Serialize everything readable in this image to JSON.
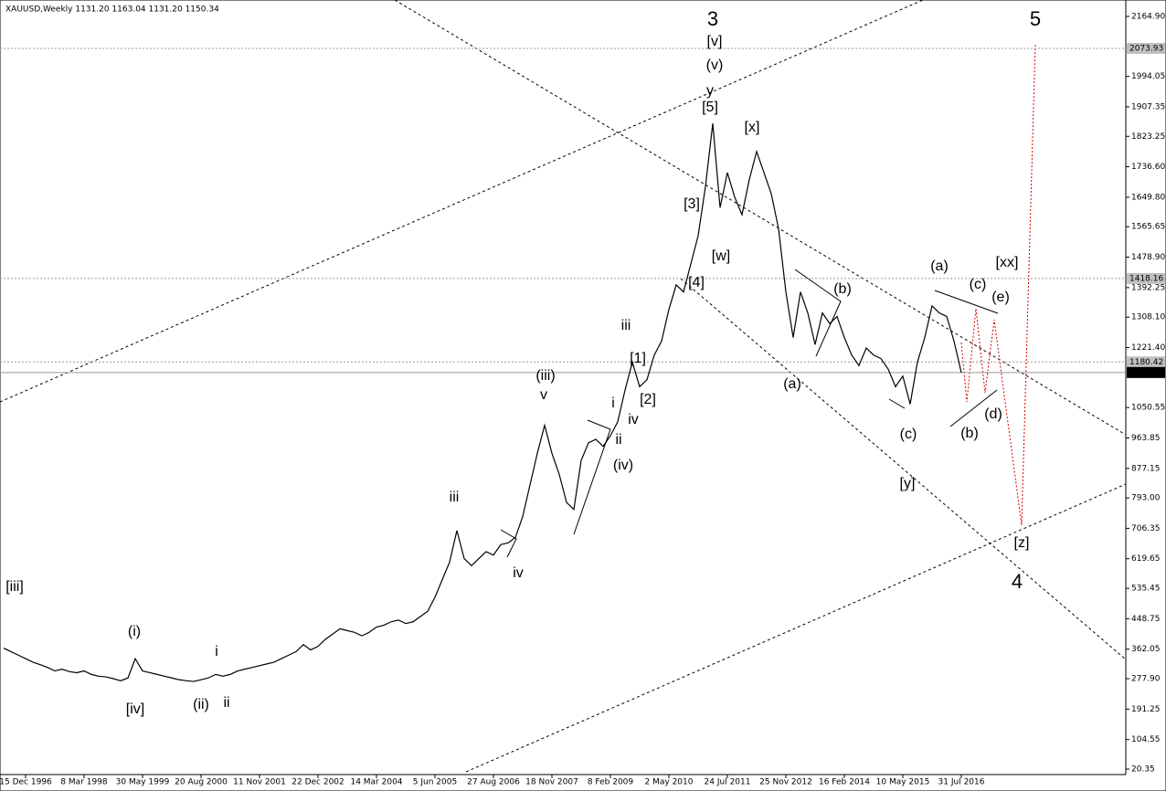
{
  "chart_data": {
    "type": "line",
    "title": "XAUUSD,Weekly  1131.20 1163.04 1131.20 1150.34",
    "color": "#000000",
    "categories": [
      null,
      null,
      null,
      "15 Dec 1996",
      null,
      null,
      null,
      null,
      null,
      null,
      null,
      "8 Mar 1998",
      null,
      null,
      null,
      null,
      null,
      null,
      null,
      "30 May 1999",
      null,
      null,
      null,
      null,
      null,
      null,
      null,
      "20 Aug 2000",
      null,
      null,
      null,
      null,
      null,
      null,
      null,
      "11 Nov 2001",
      null,
      null,
      null,
      null,
      null,
      null,
      null,
      "22 Dec 2002",
      null,
      null,
      null,
      null,
      null,
      null,
      null,
      "14 Mar 2004",
      null,
      null,
      null,
      null,
      null,
      null,
      null,
      "5 Jun 2005",
      null,
      null,
      null,
      null,
      null,
      null,
      null,
      "27 Aug 2006",
      null,
      null,
      null,
      null,
      null,
      null,
      null,
      "18 Nov 2007",
      null,
      null,
      null,
      null,
      null,
      null,
      null,
      "8 Feb 2009",
      null,
      null,
      null,
      null,
      null,
      null,
      null,
      "2 May 2010",
      null,
      null,
      null,
      null,
      null,
      null,
      null,
      "24 Jul 2011",
      null,
      null,
      null,
      null,
      null,
      null,
      null,
      "25 Nov 2012",
      null,
      null,
      null,
      null,
      null,
      null,
      null,
      "16 Feb 2014",
      null,
      null,
      null,
      null,
      null,
      null,
      null,
      "10 May 2015",
      null,
      null,
      null,
      null,
      null,
      null,
      null,
      "31 Jul 2016"
    ],
    "values": [
      365,
      355,
      345,
      335,
      325,
      318,
      310,
      300,
      305,
      298,
      295,
      300,
      290,
      285,
      283,
      278,
      272,
      280,
      335,
      300,
      295,
      290,
      285,
      280,
      275,
      272,
      270,
      275,
      280,
      290,
      285,
      290,
      300,
      305,
      310,
      315,
      320,
      325,
      335,
      345,
      355,
      375,
      360,
      370,
      390,
      405,
      420,
      415,
      410,
      400,
      410,
      425,
      430,
      440,
      445,
      435,
      440,
      455,
      470,
      510,
      560,
      610,
      700,
      620,
      600,
      620,
      640,
      630,
      660,
      665,
      680,
      740,
      830,
      920,
      1000,
      920,
      860,
      780,
      760,
      900,
      950,
      960,
      940,
      970,
      1010,
      1100,
      1180,
      1110,
      1130,
      1200,
      1240,
      1330,
      1400,
      1380,
      1460,
      1540,
      1680,
      1860,
      1620,
      1720,
      1650,
      1600,
      1700,
      1780,
      1720,
      1660,
      1560,
      1380,
      1250,
      1380,
      1320,
      1230,
      1320,
      1290,
      1310,
      1250,
      1200,
      1170,
      1220,
      1200,
      1190,
      1160,
      1110,
      1140,
      1060,
      1180,
      1250,
      1340,
      1320,
      1310,
      1240,
      1150
    ],
    "ylim": [
      20.35,
      2164.9
    ],
    "yticks": [
      {
        "value": 2164.9,
        "label": "2164.90"
      },
      {
        "value": 1994.05,
        "label": "1994.05"
      },
      {
        "value": 1907.35,
        "label": "1907.35"
      },
      {
        "value": 1823.25,
        "label": "1823.25"
      },
      {
        "value": 1736.6,
        "label": "1736.60"
      },
      {
        "value": 1649.8,
        "label": "1649.80"
      },
      {
        "value": 1565.65,
        "label": "1565.65"
      },
      {
        "value": 1478.9,
        "label": "1478.90"
      },
      {
        "value": 1392.25,
        "label": "1392.25"
      },
      {
        "value": 1308.1,
        "label": "1308.10"
      },
      {
        "value": 1221.4,
        "label": "1221.40"
      },
      {
        "value": 1050.55,
        "label": "1050.55"
      },
      {
        "value": 963.85,
        "label": "963.85"
      },
      {
        "value": 877.15,
        "label": "877.15"
      },
      {
        "value": 793.0,
        "label": "793.00"
      },
      {
        "value": 706.35,
        "label": "706.35"
      },
      {
        "value": 619.65,
        "label": "619.65"
      },
      {
        "value": 535.45,
        "label": "535.45"
      },
      {
        "value": 448.75,
        "label": "448.75"
      },
      {
        "value": 362.05,
        "label": "362.05"
      },
      {
        "value": 277.9,
        "label": "277.90"
      },
      {
        "value": 191.25,
        "label": "191.25"
      },
      {
        "value": 104.55,
        "label": "104.55"
      },
      {
        "value": 20.35,
        "label": "20.35"
      }
    ],
    "price_levels": [
      2073.93,
      1418.16,
      1180.42,
      1150.34
    ],
    "annotations": [
      {
        "text": "3",
        "color": "#0000cc"
      },
      {
        "text": "[v]",
        "color": "#dd0000"
      },
      {
        "text": "(v)",
        "color": "#228b22"
      },
      {
        "text": "y",
        "color": "#0000cc"
      },
      {
        "text": "[5]",
        "color": "#dd0000"
      },
      {
        "text": "[x]",
        "color": "#dd0000"
      },
      {
        "text": "[3]",
        "color": "#dd0000"
      },
      {
        "text": "[w]",
        "color": "#dd0000"
      },
      {
        "text": "[4]",
        "color": "#dd0000"
      },
      {
        "text": "5",
        "color": "#0000cc"
      },
      {
        "text": "[xx]",
        "color": "#dd0000"
      },
      {
        "text": "(a)",
        "color": "#228b22"
      },
      {
        "text": "(c)",
        "color": "#228b22"
      },
      {
        "text": "(e)",
        "color": "#228b22"
      },
      {
        "text": "(b)",
        "color": "#228b22"
      },
      {
        "text": "(a)",
        "color": "#228b22"
      },
      {
        "text": "(c)",
        "color": "#228b22"
      },
      {
        "text": "(b)",
        "color": "#228b22"
      },
      {
        "text": "(d)",
        "color": "#228b22"
      },
      {
        "text": "[y]",
        "color": "#dd0000"
      },
      {
        "text": "[z]",
        "color": "#dd0000"
      },
      {
        "text": "4",
        "color": "#0000cc"
      },
      {
        "text": "iii",
        "color": "#0000cc"
      },
      {
        "text": "[1]",
        "color": "#dd0000"
      },
      {
        "text": "[2]",
        "color": "#dd0000"
      },
      {
        "text": "i",
        "color": "#0000cc"
      },
      {
        "text": "ii",
        "color": "#0000cc"
      },
      {
        "text": "iv",
        "color": "#0000cc"
      },
      {
        "text": "(iv)",
        "color": "#228b22"
      },
      {
        "text": "(iii)",
        "color": "#228b22"
      },
      {
        "text": "v",
        "color": "#0000cc"
      },
      {
        "text": "iii",
        "color": "#0000cc"
      },
      {
        "text": "iv",
        "color": "#0000cc"
      },
      {
        "text": "[iii]",
        "color": "#dd0000"
      },
      {
        "text": "(i)",
        "color": "#228b22"
      },
      {
        "text": "i",
        "color": "#0000cc"
      },
      {
        "text": "[iv]",
        "color": "#dd0000"
      },
      {
        "text": "(ii)",
        "color": "#228b22"
      },
      {
        "text": "ii",
        "color": "#0000cc"
      }
    ]
  }
}
